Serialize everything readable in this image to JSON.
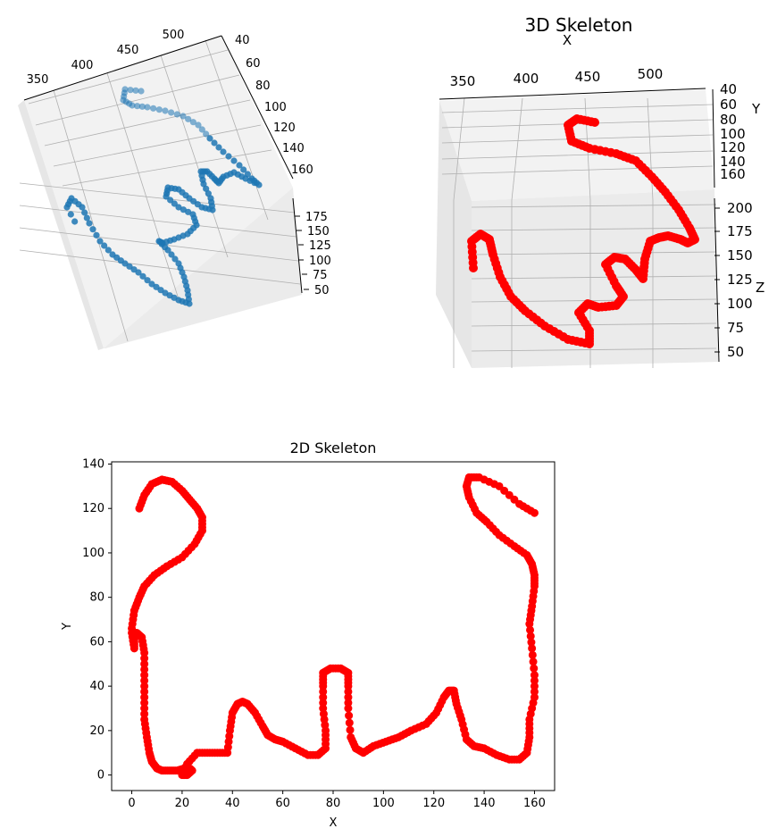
{
  "figure": {
    "panel_3d_blue": {
      "x_ticks": [
        "350",
        "400",
        "450",
        "500"
      ],
      "y_ticks": [
        "40",
        "60",
        "80",
        "100",
        "120",
        "140",
        "160"
      ],
      "z_ticks": [
        "175",
        "150",
        "125",
        "100",
        "75",
        "50"
      ]
    },
    "panel_3d_red": {
      "title": "3D Skeleton",
      "xlabel": "X",
      "ylabel": "Y",
      "zlabel": "Z",
      "x_ticks": [
        "350",
        "400",
        "450",
        "500"
      ],
      "y_ticks": [
        "40",
        "60",
        "80",
        "100",
        "120",
        "140",
        "160"
      ],
      "z_ticks": [
        "200",
        "175",
        "150",
        "125",
        "100",
        "75",
        "50"
      ]
    }
  },
  "chart_data": [
    {
      "type": "scatter",
      "subtype": "3d",
      "title": "",
      "marker_color": "#1f77b4",
      "xlim": [
        330,
        530
      ],
      "ylim": [
        40,
        170
      ],
      "zlim": [
        40,
        200
      ]
    },
    {
      "type": "scatter",
      "subtype": "3d",
      "title": "3D Skeleton",
      "marker_color": "#ff0000",
      "xlabel": "X",
      "ylabel": "Y",
      "zlabel": "Z",
      "xlim": [
        330,
        530
      ],
      "ylim": [
        40,
        170
      ],
      "zlim": [
        40,
        210
      ]
    },
    {
      "type": "scatter",
      "title": "2D Skeleton",
      "xlabel": "X",
      "ylabel": "Y",
      "marker_color": "#ff0000",
      "xlim": [
        -8,
        168
      ],
      "ylim": [
        -7,
        141
      ],
      "x_ticks": [
        0,
        20,
        40,
        60,
        80,
        100,
        120,
        140,
        160
      ],
      "y_ticks": [
        0,
        20,
        40,
        60,
        80,
        100,
        120,
        140
      ],
      "x": [
        3,
        5,
        8,
        12,
        16,
        20,
        23,
        26,
        28,
        28,
        25,
        20,
        14,
        9,
        5,
        3,
        1,
        0,
        1,
        1,
        0,
        2,
        4,
        5,
        5,
        5,
        5,
        6,
        7,
        8,
        10,
        12,
        15,
        18,
        21,
        23,
        24,
        22,
        20,
        22,
        26,
        30,
        34,
        38,
        39,
        40,
        42,
        44,
        46,
        49,
        52,
        54,
        57,
        60,
        65,
        70,
        74,
        77,
        77,
        76,
        76,
        76,
        79,
        83,
        86,
        86,
        86,
        87,
        89,
        92,
        96,
        101,
        106,
        111,
        117,
        121,
        124,
        126,
        128,
        129,
        131,
        133,
        136,
        140,
        145,
        150,
        154,
        157,
        158,
        158,
        160,
        160,
        159,
        158,
        159,
        160,
        160,
        159,
        157,
        152,
        146,
        141,
        137,
        134,
        133,
        134,
        138,
        146,
        154,
        160
      ],
      "y": [
        120,
        126,
        131,
        133,
        132,
        128,
        124,
        120,
        116,
        110,
        104,
        98,
        94,
        90,
        85,
        80,
        74,
        66,
        61,
        57,
        64,
        64,
        62,
        55,
        45,
        35,
        25,
        17,
        10,
        6,
        3,
        2,
        2,
        2,
        3,
        3,
        2,
        0,
        0,
        5,
        10,
        10,
        10,
        10,
        20,
        28,
        32,
        33,
        32,
        28,
        22,
        18,
        16,
        15,
        12,
        9,
        9,
        12,
        20,
        30,
        40,
        46,
        48,
        48,
        46,
        40,
        30,
        17,
        12,
        10,
        13,
        15,
        17,
        20,
        23,
        28,
        35,
        38,
        38,
        32,
        25,
        16,
        13,
        12,
        9,
        7,
        7,
        10,
        17,
        25,
        35,
        45,
        57,
        68,
        76,
        85,
        90,
        95,
        99,
        103,
        108,
        114,
        118,
        125,
        130,
        134,
        134,
        130,
        122,
        118
      ]
    }
  ]
}
